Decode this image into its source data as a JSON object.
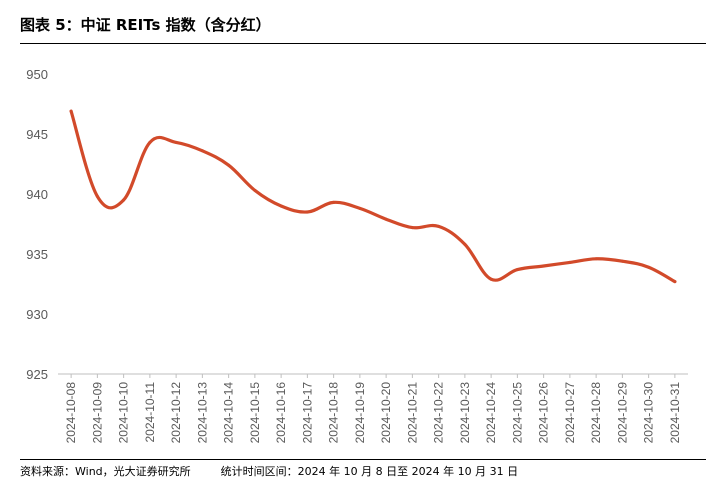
{
  "header": {
    "title": "图表 5：中证 REITs 指数（含分红）"
  },
  "footer": {
    "source": "资料来源：Wind，光大证券研究所",
    "period": "统计时间区间：2024 年 10 月 8 日至 2024 年 10 月 31 日"
  },
  "chart_data": {
    "type": "line",
    "title": "",
    "xlabel": "",
    "ylabel": "",
    "ylim": [
      925,
      950
    ],
    "yticks": [
      "925",
      "930",
      "935",
      "940",
      "945",
      "950"
    ],
    "grid": false,
    "legend": "none",
    "categories": [
      "2024-10-08",
      "2024-10-09",
      "2024-10-10",
      "2024-10-11",
      "2024-10-12",
      "2024-10-13",
      "2024-10-14",
      "2024-10-15",
      "2024-10-16",
      "2024-10-17",
      "2024-10-18",
      "2024-10-19",
      "2024-10-20",
      "2024-10-21",
      "2024-10-22",
      "2024-10-23",
      "2024-10-24",
      "2024-10-25",
      "2024-10-26",
      "2024-10-27",
      "2024-10-28",
      "2024-10-29",
      "2024-10-30",
      "2024-10-31"
    ],
    "series": [
      {
        "color": "#D24A2A",
        "values": [
          946.9,
          939.8,
          939.5,
          944.3,
          944.3,
          943.6,
          942.4,
          940.3,
          939.0,
          938.5,
          939.3,
          938.8,
          937.9,
          937.2,
          937.3,
          935.8,
          932.9,
          933.7,
          934.0,
          934.3,
          934.6,
          934.4,
          933.9,
          932.7
        ]
      }
    ]
  }
}
